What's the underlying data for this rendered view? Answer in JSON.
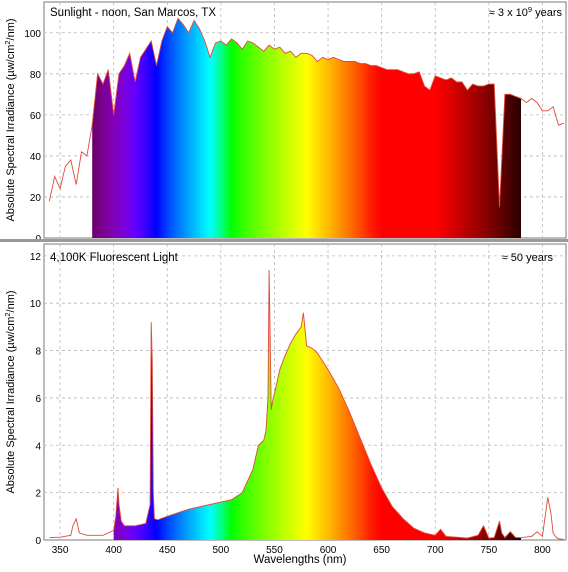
{
  "chart_data": [
    {
      "type": "area",
      "title": "Sunlight - noon, San Marcos, TX",
      "annotation_prefix": "≈ 3 x 10",
      "annotation_exp": "9",
      "annotation_suffix": " years",
      "ylabel_prefix": "Absolute Spectral Irradiance (µw/cm",
      "ylabel_exp": "2",
      "ylabel_suffix": "/nm)",
      "xlim": [
        335,
        822
      ],
      "ylim": [
        0,
        115
      ],
      "yticks": [
        "0",
        "20",
        "40",
        "60",
        "80",
        "100"
      ],
      "grid": true,
      "fill": "visible-spectrum",
      "fill_range": [
        380,
        780
      ],
      "outline_color": "#e04a3a",
      "x": [
        340,
        345,
        350,
        355,
        360,
        365,
        370,
        375,
        380,
        385,
        390,
        395,
        400,
        405,
        410,
        415,
        420,
        425,
        430,
        435,
        440,
        445,
        450,
        455,
        460,
        465,
        470,
        475,
        480,
        485,
        490,
        495,
        500,
        505,
        510,
        515,
        520,
        525,
        530,
        535,
        540,
        545,
        550,
        555,
        560,
        565,
        570,
        575,
        580,
        585,
        590,
        595,
        600,
        605,
        610,
        615,
        620,
        625,
        630,
        635,
        640,
        645,
        650,
        655,
        660,
        665,
        670,
        675,
        680,
        685,
        690,
        695,
        700,
        705,
        710,
        715,
        720,
        725,
        730,
        735,
        740,
        745,
        750,
        755,
        760,
        765,
        770,
        775,
        780,
        785,
        790,
        795,
        800,
        805,
        810,
        815,
        820
      ],
      "y": [
        18,
        30,
        24,
        35,
        38,
        26,
        42,
        40,
        55,
        80,
        75,
        82,
        60,
        80,
        84,
        90,
        76,
        88,
        92,
        96,
        84,
        96,
        103,
        100,
        107,
        104,
        100,
        106,
        102,
        96,
        88,
        95,
        96,
        94,
        97,
        95,
        92,
        96,
        95,
        93,
        91,
        94,
        92,
        93,
        90,
        91,
        88,
        90,
        90,
        89,
        86,
        88,
        87,
        88,
        87,
        86,
        86,
        86,
        85,
        85,
        84,
        84,
        83,
        82,
        82,
        82,
        81,
        80,
        80,
        81,
        74,
        72,
        79,
        78,
        77,
        78,
        76,
        76,
        72,
        75,
        74,
        74,
        75,
        75,
        15,
        70,
        70,
        69,
        68,
        66,
        68,
        66,
        62,
        62,
        64,
        55,
        56
      ]
    },
    {
      "type": "area",
      "title": "4,100K Fluorescent Light",
      "annotation": "≈ 50 years",
      "ylabel_prefix": "Absolute Spectral Irradiance (µw/cm",
      "ylabel_exp": "2",
      "ylabel_suffix": "/nm)",
      "xlabel": "Wavelengths (nm)",
      "xlim": [
        335,
        822
      ],
      "ylim": [
        0,
        12.5
      ],
      "xticks": [
        "350",
        "400",
        "450",
        "500",
        "550",
        "600",
        "650",
        "700",
        "750",
        "800"
      ],
      "yticks": [
        "0",
        "2",
        "4",
        "6",
        "8",
        "10",
        "12"
      ],
      "grid": true,
      "fill": "visible-spectrum",
      "fill_range": [
        400,
        780
      ],
      "outline_color": "#e04a3a",
      "x": [
        340,
        350,
        360,
        362,
        365,
        368,
        375,
        390,
        400,
        402,
        404,
        405,
        407,
        410,
        420,
        430,
        434,
        435,
        436,
        437,
        438,
        441,
        450,
        470,
        490,
        500,
        510,
        520,
        530,
        535,
        540,
        542,
        544,
        545,
        546,
        547,
        548,
        550,
        555,
        560,
        565,
        570,
        575,
        577,
        580,
        585,
        590,
        600,
        610,
        620,
        630,
        640,
        650,
        660,
        670,
        680,
        690,
        700,
        705,
        710,
        720,
        730,
        740,
        745,
        747,
        750,
        755,
        760,
        762,
        765,
        770,
        775,
        780,
        790,
        795,
        800,
        805,
        808,
        810,
        813,
        815,
        820
      ],
      "y": [
        0.1,
        0.12,
        0.2,
        0.6,
        0.9,
        0.3,
        0.2,
        0.2,
        0.4,
        1.0,
        2.2,
        1.5,
        0.8,
        0.6,
        0.6,
        0.7,
        1.5,
        9.2,
        7.5,
        2.0,
        0.9,
        0.85,
        1.0,
        1.3,
        1.5,
        1.6,
        1.7,
        2.0,
        3.0,
        4.0,
        4.2,
        4.6,
        6.0,
        11.4,
        8.5,
        5.5,
        5.8,
        6.2,
        7.2,
        7.8,
        8.3,
        8.7,
        9.0,
        9.6,
        8.2,
        8.1,
        7.9,
        7.2,
        6.4,
        5.4,
        4.3,
        3.2,
        2.2,
        1.4,
        0.9,
        0.5,
        0.3,
        0.2,
        0.45,
        0.15,
        0.12,
        0.08,
        0.2,
        0.6,
        0.4,
        0.08,
        0.1,
        0.8,
        0.3,
        0.1,
        0.35,
        0.1,
        0.1,
        0.15,
        0.35,
        0.15,
        1.8,
        1.1,
        0.3,
        0.1,
        0.05,
        0.02
      ]
    }
  ]
}
